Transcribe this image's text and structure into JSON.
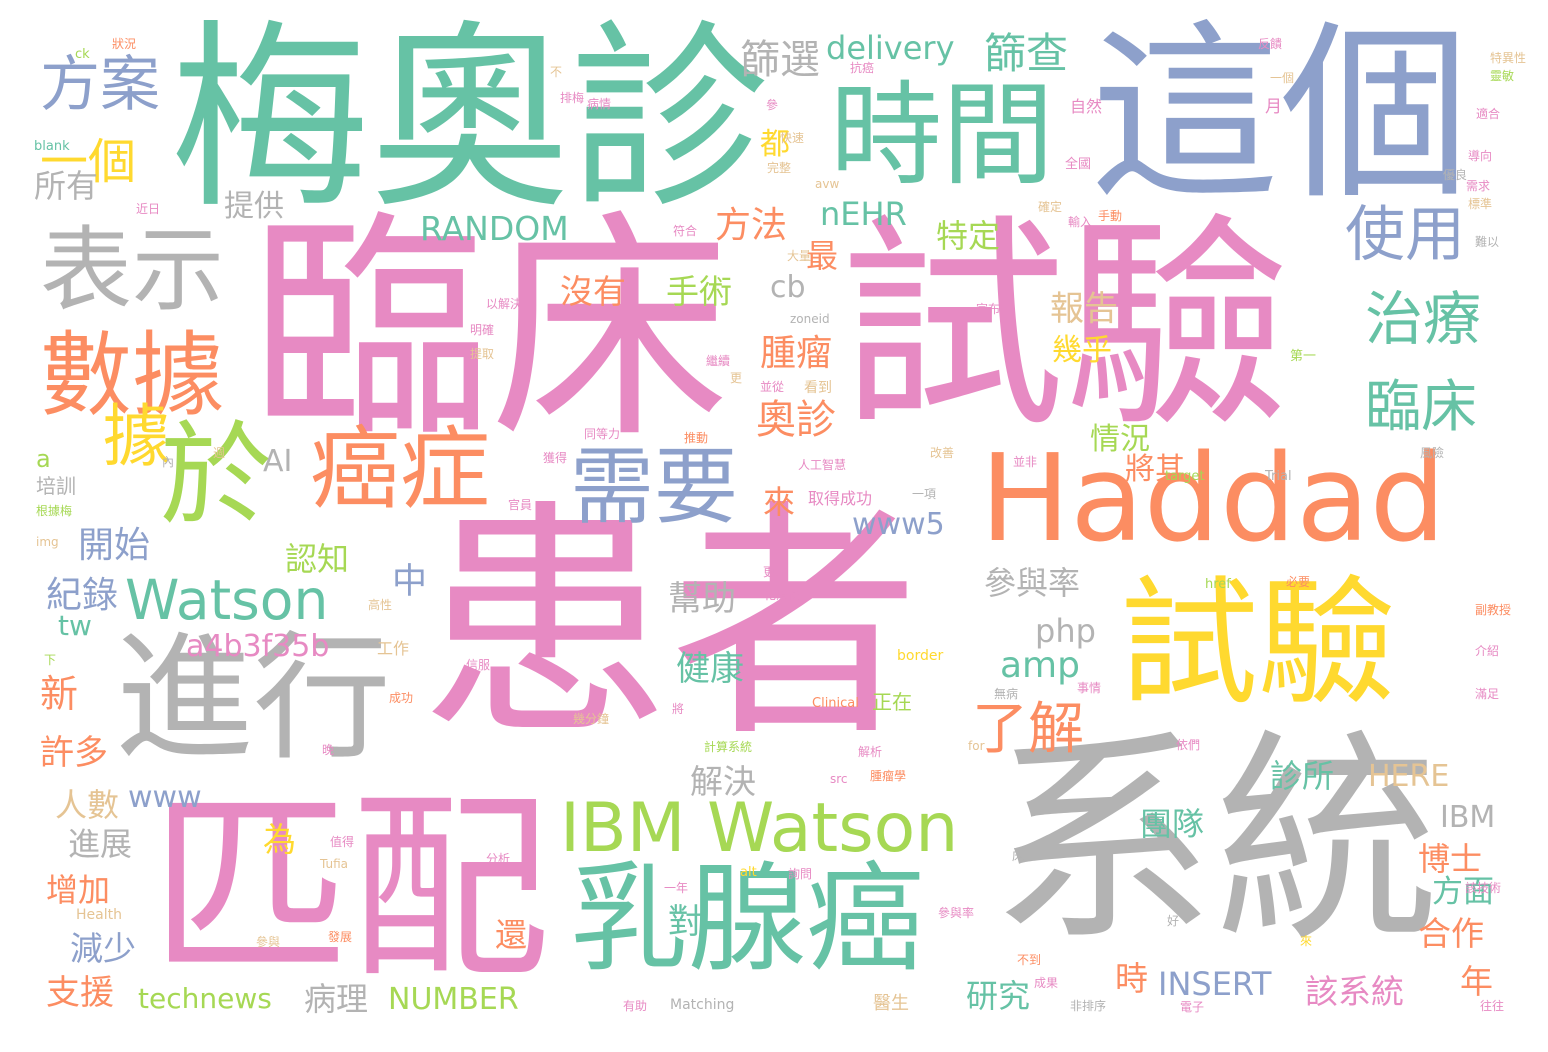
{
  "palette": {
    "pink": "#e78ac3",
    "green": "#66c2a5",
    "orange": "#fc8d62",
    "blue": "#8da0cb",
    "lime": "#a6d854",
    "yellow": "#ffd92f",
    "tan": "#e5c494",
    "gray": "#b3b3b3"
  },
  "words": [
    {
      "text": "患者",
      "color": "pink"
    },
    {
      "text": "臨床",
      "color": "pink"
    },
    {
      "text": "試驗",
      "color": "pink"
    },
    {
      "text": "梅奧診",
      "color": "green"
    },
    {
      "text": "這個",
      "color": "blue"
    },
    {
      "text": "系統",
      "color": "gray"
    },
    {
      "text": "匹配",
      "color": "pink"
    },
    {
      "text": "Haddad",
      "color": "orange"
    },
    {
      "text": "試驗",
      "color": "yellow"
    },
    {
      "text": "時間",
      "color": "green"
    },
    {
      "text": "進行",
      "color": "gray"
    },
    {
      "text": "乳腺癌",
      "color": "green"
    },
    {
      "text": "表示",
      "color": "gray"
    },
    {
      "text": "數據",
      "color": "orange"
    },
    {
      "text": "於",
      "color": "lime"
    },
    {
      "text": "癌症",
      "color": "orange"
    },
    {
      "text": "需要",
      "color": "blue"
    },
    {
      "text": "IBM Watson",
      "color": "lime"
    },
    {
      "text": "Watson",
      "color": "green"
    },
    {
      "text": "方案",
      "color": "blue"
    },
    {
      "text": "使用",
      "color": "blue"
    },
    {
      "text": "治療",
      "color": "green"
    },
    {
      "text": "臨床",
      "color": "green"
    },
    {
      "text": "一個",
      "color": "yellow"
    },
    {
      "text": "篩選",
      "color": "gray"
    },
    {
      "text": "delivery",
      "color": "green"
    },
    {
      "text": "篩查",
      "color": "green"
    },
    {
      "text": "所有",
      "color": "gray"
    },
    {
      "text": "提供",
      "color": "gray"
    },
    {
      "text": "都",
      "color": "yellow"
    },
    {
      "text": "RANDOM",
      "color": "green"
    },
    {
      "text": "方法",
      "color": "orange"
    },
    {
      "text": "nEHR",
      "color": "green"
    },
    {
      "text": "特定",
      "color": "lime"
    },
    {
      "text": "沒有",
      "color": "orange"
    },
    {
      "text": "手術",
      "color": "lime"
    },
    {
      "text": "最",
      "color": "orange"
    },
    {
      "text": "cb",
      "color": "gray"
    },
    {
      "text": "據",
      "color": "yellow"
    },
    {
      "text": "腫瘤",
      "color": "orange"
    },
    {
      "text": "報告",
      "color": "tan"
    },
    {
      "text": "幾乎",
      "color": "yellow"
    },
    {
      "text": "奧診",
      "color": "orange"
    },
    {
      "text": "AI",
      "color": "gray"
    },
    {
      "text": "開始",
      "color": "blue"
    },
    {
      "text": "情況",
      "color": "lime"
    },
    {
      "text": "將其",
      "color": "orange"
    },
    {
      "text": "來",
      "color": "orange"
    },
    {
      "text": "www5",
      "color": "blue"
    },
    {
      "text": "認知",
      "color": "lime"
    },
    {
      "text": "中",
      "color": "blue"
    },
    {
      "text": "紀錄",
      "color": "blue"
    },
    {
      "text": "參與率",
      "color": "gray"
    },
    {
      "text": "tw",
      "color": "green"
    },
    {
      "text": "幫助",
      "color": "gray"
    },
    {
      "text": "a4b3f35b",
      "color": "pink"
    },
    {
      "text": "php",
      "color": "gray"
    },
    {
      "text": "amp",
      "color": "green"
    },
    {
      "text": "新",
      "color": "orange"
    },
    {
      "text": "健康",
      "color": "green"
    },
    {
      "text": "了解",
      "color": "orange"
    },
    {
      "text": "許多",
      "color": "orange"
    },
    {
      "text": "解決",
      "color": "gray"
    },
    {
      "text": "www",
      "color": "blue"
    },
    {
      "text": "診所",
      "color": "green"
    },
    {
      "text": "HERE",
      "color": "tan"
    },
    {
      "text": "人數",
      "color": "tan"
    },
    {
      "text": "IBM",
      "color": "gray"
    },
    {
      "text": "進展",
      "color": "gray"
    },
    {
      "text": "為",
      "color": "yellow"
    },
    {
      "text": "團隊",
      "color": "green"
    },
    {
      "text": "博士",
      "color": "orange"
    },
    {
      "text": "增加",
      "color": "orange"
    },
    {
      "text": "方面",
      "color": "green"
    },
    {
      "text": "對",
      "color": "green"
    },
    {
      "text": "減少",
      "color": "blue"
    },
    {
      "text": "合作",
      "color": "orange"
    },
    {
      "text": "還",
      "color": "orange"
    },
    {
      "text": "時",
      "color": "orange"
    },
    {
      "text": "INSERT",
      "color": "blue"
    },
    {
      "text": "支援",
      "color": "orange"
    },
    {
      "text": "technews",
      "color": "lime"
    },
    {
      "text": "病理",
      "color": "gray"
    },
    {
      "text": "NUMBER",
      "color": "lime"
    },
    {
      "text": "研究",
      "color": "green"
    },
    {
      "text": "該系統",
      "color": "pink"
    },
    {
      "text": "年",
      "color": "orange"
    },
    {
      "text": "a",
      "color": "lime"
    },
    {
      "text": "培訓",
      "color": "gray"
    },
    {
      "text": "blank",
      "color": "green"
    },
    {
      "text": "ck",
      "color": "lime"
    },
    {
      "text": "狀況",
      "color": "orange"
    },
    {
      "text": "近日",
      "color": "pink"
    },
    {
      "text": "不",
      "color": "tan"
    },
    {
      "text": "排梅",
      "color": "pink"
    },
    {
      "text": "病情",
      "color": "pink"
    },
    {
      "text": "參",
      "color": "pink"
    },
    {
      "text": "快速",
      "color": "tan"
    },
    {
      "text": "完整",
      "color": "tan"
    },
    {
      "text": "avw",
      "color": "tan"
    },
    {
      "text": "抗癌",
      "color": "pink"
    },
    {
      "text": "自然",
      "color": "pink"
    },
    {
      "text": "月",
      "color": "pink"
    },
    {
      "text": "一個",
      "color": "tan"
    },
    {
      "text": "反饋",
      "color": "pink"
    },
    {
      "text": "特異性",
      "color": "tan"
    },
    {
      "text": "靈敏",
      "color": "lime"
    },
    {
      "text": "適合",
      "color": "pink"
    },
    {
      "text": "導向",
      "color": "pink"
    },
    {
      "text": "需求",
      "color": "pink"
    },
    {
      "text": "標準",
      "color": "tan"
    },
    {
      "text": "優良",
      "color": "gray"
    },
    {
      "text": "難以",
      "color": "gray"
    },
    {
      "text": "全國",
      "color": "pink"
    },
    {
      "text": "確定",
      "color": "tan"
    },
    {
      "text": "輸入",
      "color": "pink"
    },
    {
      "text": "手動",
      "color": "orange"
    },
    {
      "text": "大量",
      "color": "tan"
    },
    {
      "text": "宣布",
      "color": "pink"
    },
    {
      "text": "符合",
      "color": "pink"
    },
    {
      "text": "以解決",
      "color": "pink"
    },
    {
      "text": "明確",
      "color": "pink"
    },
    {
      "text": "提取",
      "color": "tan"
    },
    {
      "text": "繼續",
      "color": "pink"
    },
    {
      "text": "更",
      "color": "tan"
    },
    {
      "text": "並從",
      "color": "pink"
    },
    {
      "text": "看到",
      "color": "tan"
    },
    {
      "text": "第一",
      "color": "lime"
    },
    {
      "text": "同等力",
      "color": "pink"
    },
    {
      "text": "推動",
      "color": "orange"
    },
    {
      "text": "人工智慧",
      "color": "pink"
    },
    {
      "text": "改善",
      "color": "tan"
    },
    {
      "text": "並非",
      "color": "pink"
    },
    {
      "text": "風險",
      "color": "gray"
    },
    {
      "text": "內",
      "color": "gray"
    },
    {
      "text": "週",
      "color": "tan"
    },
    {
      "text": "獲得",
      "color": "pink"
    },
    {
      "text": "取得成功",
      "color": "pink"
    },
    {
      "text": "一項",
      "color": "gray"
    },
    {
      "text": "target",
      "color": "lime"
    },
    {
      "text": "Trial",
      "color": "gray"
    },
    {
      "text": "根據梅",
      "color": "lime"
    },
    {
      "text": "官員",
      "color": "pink"
    },
    {
      "text": "img",
      "color": "tan"
    },
    {
      "text": "化療後",
      "color": "pink"
    },
    {
      "text": "更好",
      "color": "pink"
    },
    {
      "text": "href",
      "color": "lime"
    },
    {
      "text": "必要",
      "color": "orange"
    },
    {
      "text": "副教授",
      "color": "orange"
    },
    {
      "text": "高性",
      "color": "tan"
    },
    {
      "text": "工作",
      "color": "tan"
    },
    {
      "text": "下",
      "color": "lime"
    },
    {
      "text": "信服",
      "color": "pink"
    },
    {
      "text": "border",
      "color": "yellow"
    },
    {
      "text": "介紹",
      "color": "pink"
    },
    {
      "text": "無病",
      "color": "gray"
    },
    {
      "text": "事情",
      "color": "pink"
    },
    {
      "text": "滿足",
      "color": "pink"
    },
    {
      "text": "成功",
      "color": "orange"
    },
    {
      "text": "Clinical",
      "color": "orange"
    },
    {
      "text": "正在",
      "color": "lime"
    },
    {
      "text": "將",
      "color": "pink"
    },
    {
      "text": "幾分鐘",
      "color": "tan"
    },
    {
      "text": "晚",
      "color": "pink"
    },
    {
      "text": "計算系統",
      "color": "lime"
    },
    {
      "text": "解析",
      "color": "pink"
    },
    {
      "text": "for",
      "color": "tan"
    },
    {
      "text": "依們",
      "color": "pink"
    },
    {
      "text": "src",
      "color": "pink"
    },
    {
      "text": "腫瘤學",
      "color": "orange"
    },
    {
      "text": "Tufia",
      "color": "tan"
    },
    {
      "text": "值得",
      "color": "pink"
    },
    {
      "text": "分析",
      "color": "pink"
    },
    {
      "text": "床",
      "color": "gray"
    },
    {
      "text": "alt",
      "color": "yellow"
    },
    {
      "text": "詢問",
      "color": "pink"
    },
    {
      "text": "該技術",
      "color": "pink"
    },
    {
      "text": "一年",
      "color": "pink"
    },
    {
      "text": "Health",
      "color": "tan"
    },
    {
      "text": "參與率",
      "color": "pink"
    },
    {
      "text": "好",
      "color": "gray"
    },
    {
      "text": "來",
      "color": "yellow"
    },
    {
      "text": "參與",
      "color": "tan"
    },
    {
      "text": "發展",
      "color": "orange"
    },
    {
      "text": "不到",
      "color": "orange"
    },
    {
      "text": "成果",
      "color": "pink"
    },
    {
      "text": "有助",
      "color": "pink"
    },
    {
      "text": "Matching",
      "color": "gray"
    },
    {
      "text": "非排序",
      "color": "gray"
    },
    {
      "text": "醫生",
      "color": "tan"
    },
    {
      "text": "電子",
      "color": "pink"
    },
    {
      "text": "往往",
      "color": "pink"
    },
    {
      "text": "zoneid",
      "color": "gray"
    }
  ]
}
